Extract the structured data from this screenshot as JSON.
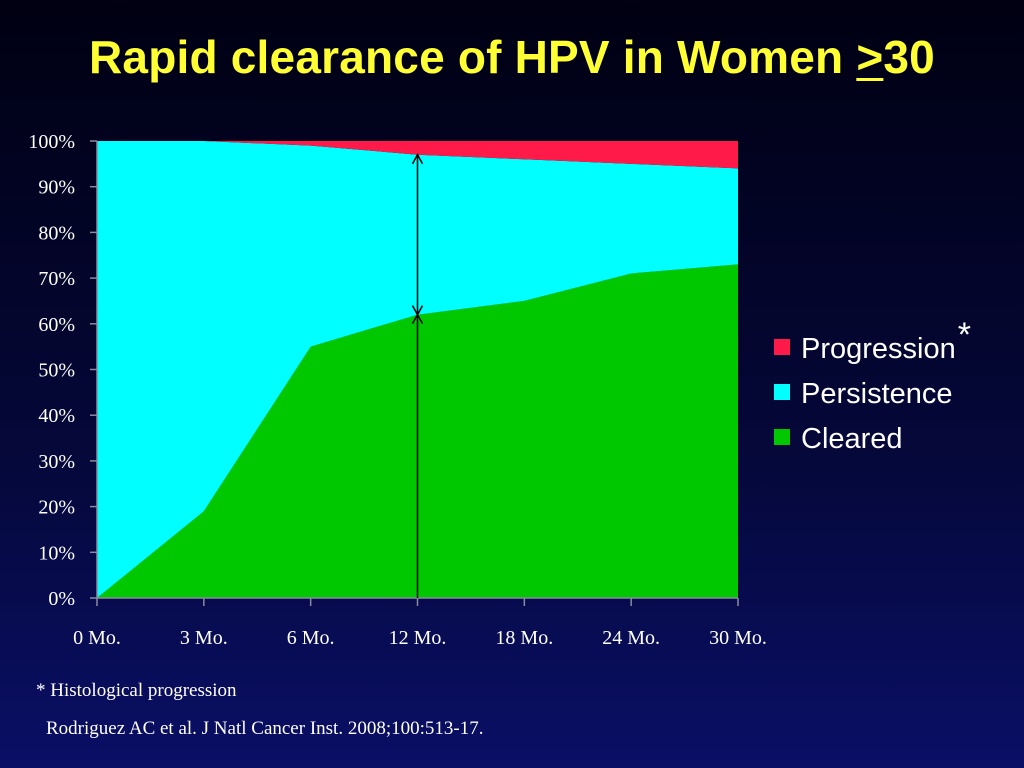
{
  "slide": {
    "title_main": "Rapid clearance of HPV in Women ",
    "title_ge": ">",
    "title_end": "30",
    "footnote": "* Histological progression",
    "citation": "Rodriguez AC et al.  J Natl Cancer Inst. 2008;100:513-17."
  },
  "chart_data": {
    "type": "area",
    "stacked": "100%",
    "categories": [
      "0 Mo.",
      "3 Mo.",
      "6 Mo.",
      "12 Mo.",
      "18 Mo.",
      "24 Mo.",
      "30 Mo."
    ],
    "y_ticks": [
      "0%",
      "10%",
      "20%",
      "30%",
      "40%",
      "50%",
      "60%",
      "70%",
      "80%",
      "90%",
      "100%"
    ],
    "ylim": [
      0,
      100
    ],
    "series": [
      {
        "name": "Cleared",
        "color": "#00c800",
        "values": [
          0,
          19,
          55,
          62,
          65,
          71,
          73
        ]
      },
      {
        "name": "Persistence",
        "color": "#00ffff",
        "values": [
          100,
          81,
          44,
          35,
          31,
          24,
          21
        ]
      },
      {
        "name": "Progression",
        "color": "#ff1a4a",
        "values": [
          0,
          0,
          1,
          3,
          4,
          5,
          6
        ]
      }
    ],
    "legend": {
      "position": "right",
      "order": [
        "Progression",
        "Persistence",
        "Cleared"
      ],
      "star_on": "Progression",
      "star": "*"
    },
    "annotation": {
      "type": "double-arrow",
      "at_category": "12 Mo.",
      "spans": [
        "Cleared",
        "Persistence"
      ]
    },
    "grid": false
  }
}
